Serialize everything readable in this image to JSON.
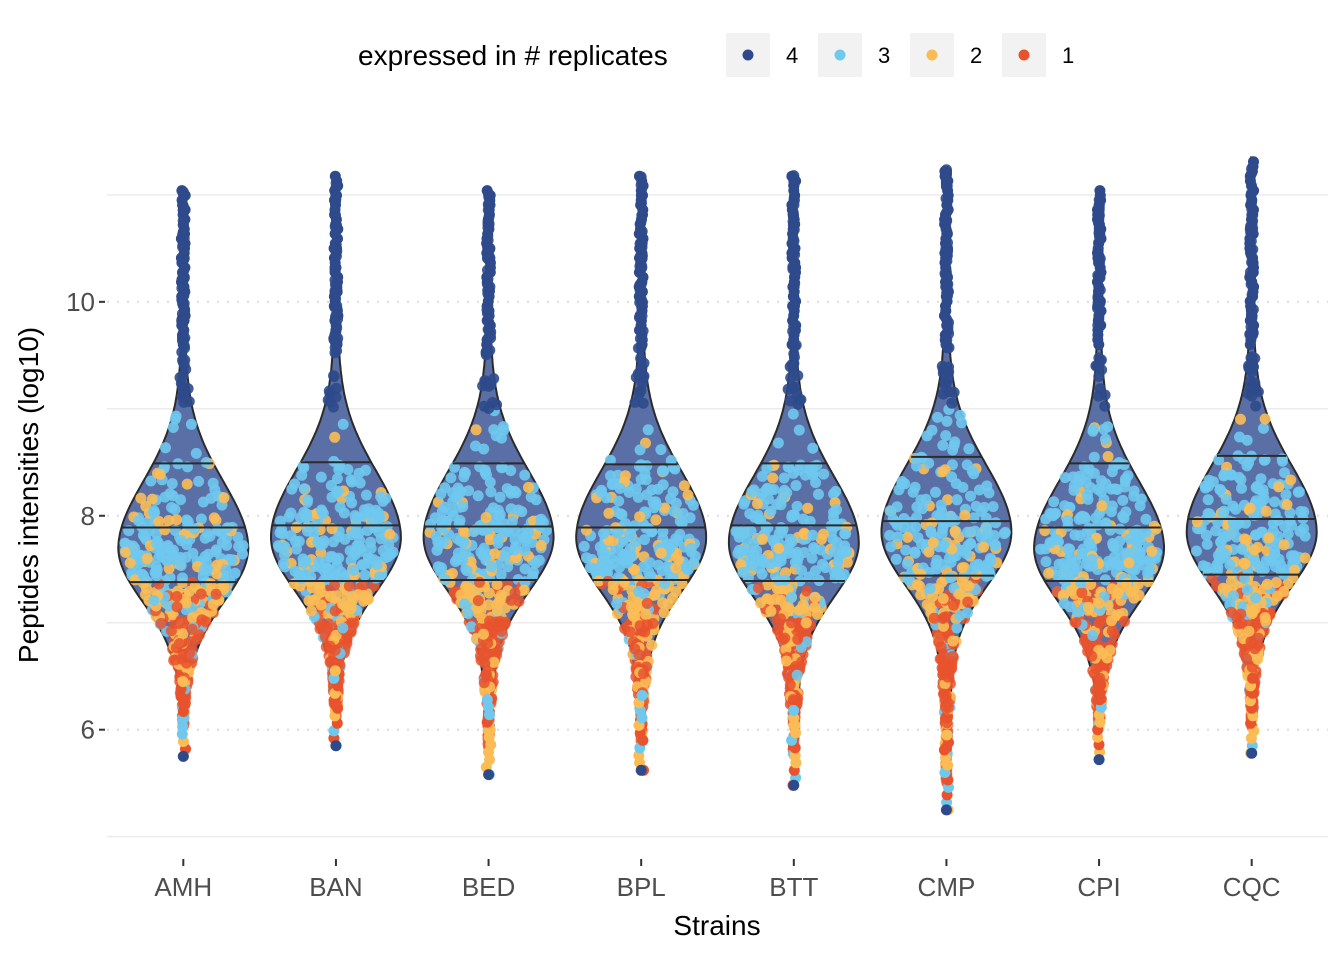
{
  "chart_data": {
    "type": "violin",
    "title": "",
    "xlabel": "Strains",
    "ylabel": "Peptides intensities (log10)",
    "ylim": [
      4.95,
      11.7
    ],
    "y_ticks": [
      6,
      8,
      10
    ],
    "categories": [
      "AMH",
      "BAN",
      "BED",
      "BPL",
      "BTT",
      "CMP",
      "CPI",
      "CQC"
    ],
    "legend": {
      "title": "expressed in # replicates",
      "position": "top",
      "entries": [
        {
          "label": "4",
          "color": "#2E4A8B"
        },
        {
          "label": "3",
          "color": "#6FC8EE"
        },
        {
          "label": "2",
          "color": "#FBBC55"
        },
        {
          "label": "1",
          "color": "#E8532E"
        }
      ]
    },
    "violin_fill": "#5A6FA6",
    "grid": true,
    "strains": [
      {
        "name": "AMH",
        "min": 5.75,
        "max": 11.05,
        "q1": 7.38,
        "median": 7.89,
        "q3": 8.49,
        "mode": 7.7
      },
      {
        "name": "BAN",
        "min": 5.85,
        "max": 11.2,
        "q1": 7.39,
        "median": 7.91,
        "q3": 8.5,
        "mode": 7.8
      },
      {
        "name": "BED",
        "min": 5.58,
        "max": 11.05,
        "q1": 7.4,
        "median": 7.9,
        "q3": 8.49,
        "mode": 7.8
      },
      {
        "name": "BPL",
        "min": 5.62,
        "max": 11.2,
        "q1": 7.4,
        "median": 7.89,
        "q3": 8.48,
        "mode": 7.8
      },
      {
        "name": "BTT",
        "min": 5.48,
        "max": 11.2,
        "q1": 7.39,
        "median": 7.91,
        "q3": 8.49,
        "mode": 7.75
      },
      {
        "name": "CMP",
        "min": 5.25,
        "max": 11.25,
        "q1": 7.44,
        "median": 7.95,
        "q3": 8.55,
        "mode": 7.85
      },
      {
        "name": "CPI",
        "min": 5.72,
        "max": 11.05,
        "q1": 7.39,
        "median": 7.89,
        "q3": 8.49,
        "mode": 7.7
      },
      {
        "name": "CQC",
        "min": 5.78,
        "max": 11.35,
        "q1": 7.45,
        "median": 7.97,
        "q3": 8.56,
        "mode": 7.85
      }
    ]
  }
}
